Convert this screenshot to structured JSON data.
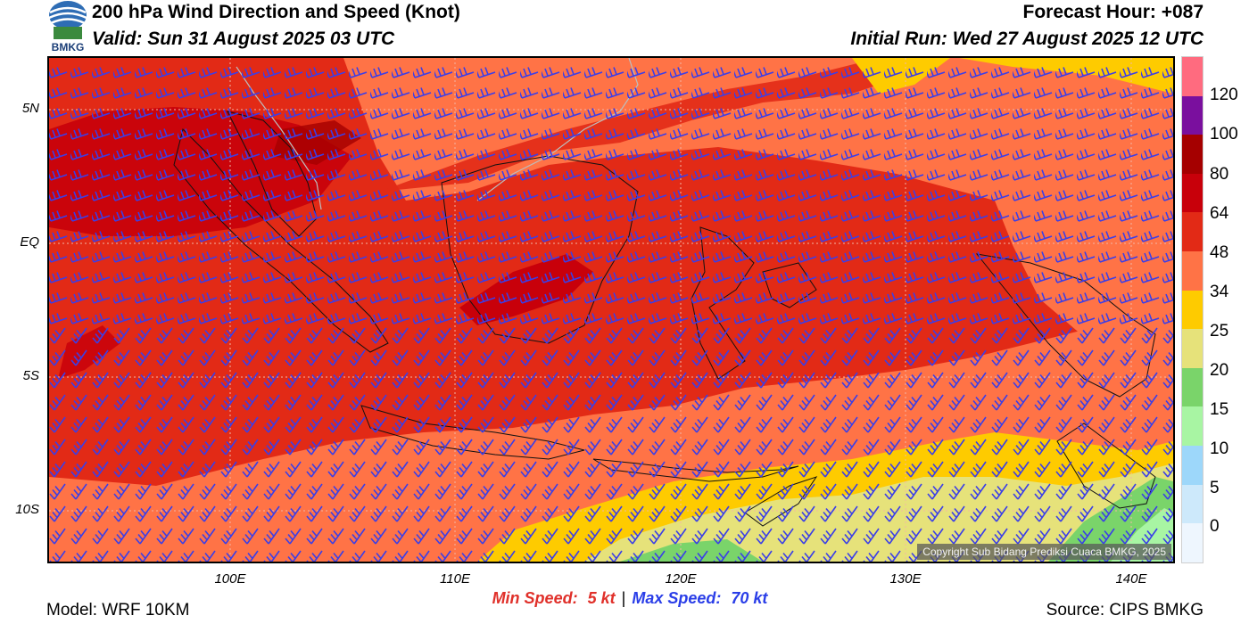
{
  "header": {
    "title": "200 hPa Wind Direction and Speed (Knot)",
    "valid": "Valid: Sun 31 August 2025 03 UTC",
    "forecast_hour": "Forecast Hour: +087",
    "initial_run": "Initial Run: Wed 27 August 2025 12 UTC",
    "logo_text": "BMKG"
  },
  "map": {
    "lat_labels": [
      "5N",
      "EQ",
      "5S",
      "10S"
    ],
    "lon_labels": [
      "100E",
      "110E",
      "120E",
      "130E",
      "140E"
    ],
    "copyright": "Copyright Sub Bidang Prediksi Cuaca BMKG, 2025"
  },
  "colorbar": {
    "labels": [
      "120",
      "100",
      "80",
      "64",
      "48",
      "34",
      "25",
      "20",
      "15",
      "10",
      "5",
      "0"
    ],
    "colors": [
      "#ff6b7f",
      "#7a0f9e",
      "#a50000",
      "#c8000a",
      "#e22a16",
      "#ff7346",
      "#fecb00",
      "#e6e27a",
      "#7ad46a",
      "#a8f5a3",
      "#9dd7fa",
      "#cde9fb",
      "#eef6fe"
    ]
  },
  "footer": {
    "min_label": "Min Speed:",
    "min_value": "5 kt",
    "separator": "|",
    "max_label": "Max Speed:",
    "max_value": "70 kt",
    "model": "Model: WRF 10KM",
    "source": "Source: CIPS BMKG"
  }
}
